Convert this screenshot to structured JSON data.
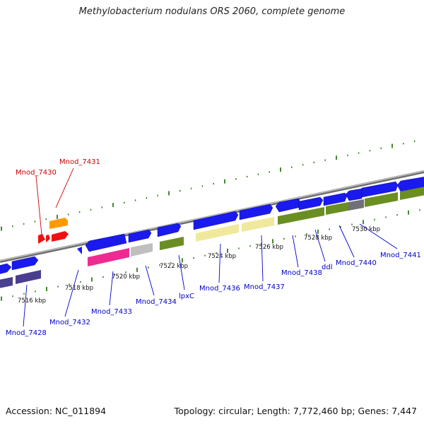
{
  "title": "Methylobacterium nodulans ORS 2060, complete genome",
  "accession": "Accession: NC_011894",
  "summary": "Topology: circular; Length: 7,772,460 bp; Genes: 7,447",
  "colors": {
    "backbone": "#8a8a8a",
    "tick": "#2e7d1a",
    "blue": "#1a1aee",
    "navy": "#4a3f8f",
    "orange": "#ff9900",
    "red": "#ee1111",
    "magenta": "#ee2b93",
    "gray": "#bfbfbf",
    "olive": "#6b8e23",
    "cream": "#f0e89c",
    "darkgray": "#707078",
    "label_blue": "#0000cc",
    "label_red": "#cc0000"
  },
  "scale_labels": [
    "7516 kbp",
    "7518 kbp",
    "7520 kbp",
    "7522 kbp",
    "7524 kbp",
    "7526 kbp",
    "7528 kbp",
    "7530 kbp"
  ],
  "gene_labels": [
    {
      "text": "Mnod_7428",
      "color": "blue"
    },
    {
      "text": "Mnod_7430",
      "color": "red"
    },
    {
      "text": "Mnod_7431",
      "color": "red"
    },
    {
      "text": "Mnod_7432",
      "color": "blue"
    },
    {
      "text": "Mnod_7433",
      "color": "blue"
    },
    {
      "text": "Mnod_7434",
      "color": "blue"
    },
    {
      "text": "lpxC",
      "color": "blue"
    },
    {
      "text": "Mnod_7436",
      "color": "blue"
    },
    {
      "text": "Mnod_7437",
      "color": "blue"
    },
    {
      "text": "Mnod_7438",
      "color": "blue"
    },
    {
      "text": "ddl",
      "color": "blue"
    },
    {
      "text": "Mnod_7440",
      "color": "blue"
    },
    {
      "text": "Mnod_7441",
      "color": "blue"
    }
  ]
}
